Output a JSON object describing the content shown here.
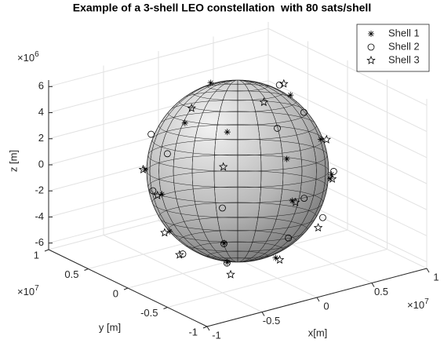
{
  "chart_data": {
    "type": "scatter3d",
    "title": "Example of a 3-shell LEO constellation  with 80 sats/shell",
    "xlabel": "x[m]",
    "ylabel": "y [m]",
    "zlabel": "z [m]",
    "x_scale_label": [
      "×10",
      "7"
    ],
    "y_scale_label": [
      "×10",
      "7"
    ],
    "z_scale_label": [
      "×10",
      "6"
    ],
    "xlim": [
      -1,
      1
    ],
    "ylim": [
      -1,
      1
    ],
    "zlim": [
      -6.5,
      6.5
    ],
    "xticks": [
      -1,
      -0.5,
      0,
      0.5,
      1
    ],
    "yticks": [
      -1,
      -0.5,
      0,
      0.5,
      1
    ],
    "zticks": [
      -6,
      -4,
      -2,
      0,
      2,
      4,
      6
    ],
    "grid": true,
    "legend_position": "upper right",
    "series": [
      {
        "name": "Shell 1",
        "marker": "asterisk",
        "color": "#000000",
        "x": [
          0.44,
          -0.44,
          -0.69,
          0,
          0.49,
          -0.49,
          -0.34,
          0,
          -0.48,
          0.48,
          -0.62,
          0,
          -0.34,
          0,
          0.55
        ],
        "y": [
          -0.44,
          -0.44,
          0,
          -0.69,
          -0.49,
          0.49,
          -0.34,
          -0.48,
          0,
          0,
          0,
          -0.62,
          -0.34,
          0.34,
          -0.42
        ],
        "z": [
          3,
          -3,
          0,
          0,
          0,
          0,
          5,
          -5,
          5,
          5,
          -3,
          3,
          -5,
          6,
          0
        ]
      },
      {
        "name": "Shell 2",
        "marker": "circle",
        "color": "#000000",
        "x": [
          -0.5,
          0.1,
          -0.64,
          -0.45,
          0.45,
          0,
          -0.35,
          0.38,
          -0.7,
          0.6,
          -0.5,
          0,
          -0.5,
          0.35
        ],
        "y": [
          -0.5,
          -0.7,
          0,
          -0.45,
          -0.45,
          -0.5,
          -0.35,
          0,
          0.1,
          -0.38,
          0.4,
          -0.64,
          0,
          -0.35
        ],
        "z": [
          0,
          0,
          3,
          -3,
          -3,
          5,
          -5,
          6,
          0,
          0,
          3,
          -3,
          -5,
          5
        ]
      },
      {
        "name": "Shell 3",
        "marker": "pentagram",
        "color": "#000000",
        "x": [
          0,
          -0.73,
          -0.47,
          0.47,
          -0.53,
          0,
          0,
          -0.42,
          0.42,
          -0.665,
          0.5,
          -0.5,
          -0.23,
          0.3
        ],
        "y": [
          -0.73,
          0,
          -0.47,
          -0.47,
          0,
          -0.53,
          -0.33,
          0,
          0,
          0,
          -0.5,
          0.5,
          -0.23,
          -0.6
        ],
        "z": [
          0,
          0,
          3,
          3,
          -5,
          -5,
          6.5,
          6,
          6,
          -3,
          0,
          0,
          -6.5,
          -3
        ]
      }
    ]
  }
}
